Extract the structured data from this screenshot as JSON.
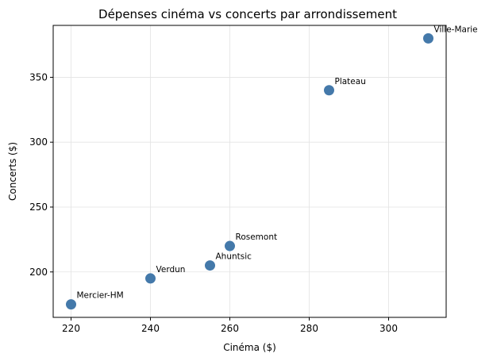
{
  "chart_data": {
    "type": "scatter",
    "title": "Dépenses cinéma vs concerts par arrondissement",
    "xlabel": "Cinéma ($)",
    "ylabel": "Concerts ($)",
    "xlim": [
      215.5,
      314.5
    ],
    "ylim": [
      165,
      390
    ],
    "xticks": [
      220,
      240,
      260,
      280,
      300
    ],
    "yticks": [
      200,
      250,
      300,
      350
    ],
    "grid": true,
    "color": "#4479aa",
    "points": [
      {
        "label": "Mercier-HM",
        "x": 220,
        "y": 175
      },
      {
        "label": "Verdun",
        "x": 240,
        "y": 195
      },
      {
        "label": "Ahuntsic",
        "x": 255,
        "y": 205
      },
      {
        "label": "Rosemont",
        "x": 260,
        "y": 220
      },
      {
        "label": "Plateau",
        "x": 285,
        "y": 340
      },
      {
        "label": "Ville-Marie",
        "x": 310,
        "y": 380
      }
    ]
  }
}
